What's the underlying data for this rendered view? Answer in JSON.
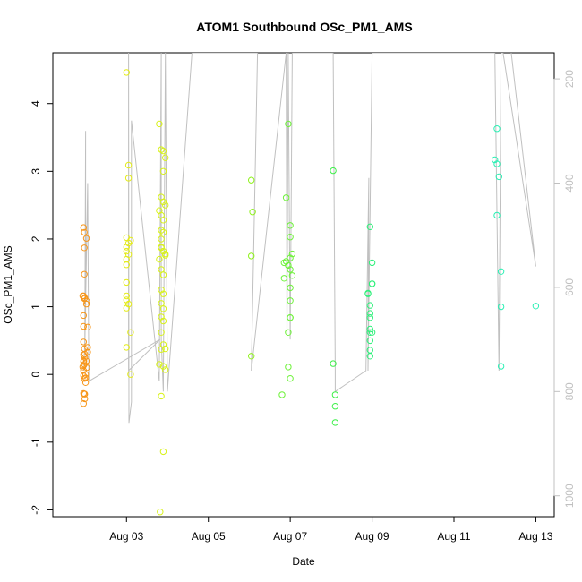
{
  "chart_data": {
    "type": "scatter",
    "title": "ATOM1 Southbound OSc_PM1_AMS",
    "xlabel": "Date",
    "ylabel": "OSc_PM1_AMS",
    "x_ticks": [
      "Aug 03",
      "Aug 05",
      "Aug 07",
      "Aug 09",
      "Aug 11",
      "Aug 13"
    ],
    "x_tick_values": [
      3,
      5,
      7,
      9,
      11,
      13
    ],
    "xlim": [
      1.2,
      13.45
    ],
    "y_ticks": [
      "-2",
      "-1",
      "0",
      "1",
      "2",
      "3",
      "4"
    ],
    "y_tick_values": [
      -2,
      -1,
      0,
      1,
      2,
      3,
      4
    ],
    "ylim": [
      -2.1,
      4.75
    ],
    "right_axis": {
      "ticks": [
        "200",
        "400",
        "600",
        "800",
        "1000"
      ],
      "tick_values": [
        200,
        400,
        600,
        800,
        1000
      ],
      "lim": [
        1040,
        150
      ],
      "line_color": "#c0c0c0",
      "tick_color": "#c0c0c0",
      "line_series": [
        [
          1.96,
          760
        ],
        [
          2.0,
          650
        ],
        [
          2.0,
          300
        ],
        [
          1.98,
          720
        ],
        [
          2.05,
          400
        ],
        [
          2.08,
          780
        ],
        [
          3.82,
          700
        ],
        [
          3.05,
          760
        ],
        [
          3.05,
          150
        ],
        [
          3.06,
          860
        ],
        [
          3.12,
          820
        ],
        [
          3.12,
          280
        ],
        [
          3.8,
          780
        ],
        [
          3.85,
          150
        ],
        [
          3.85,
          700
        ],
        [
          3.9,
          800
        ],
        [
          3.95,
          150
        ],
        [
          4.0,
          800
        ],
        [
          4.6,
          150
        ],
        [
          6.05,
          150
        ],
        [
          6.2,
          150
        ],
        [
          6.05,
          760
        ],
        [
          6.9,
          150
        ],
        [
          6.92,
          700
        ],
        [
          6.95,
          150
        ],
        [
          7.0,
          700
        ],
        [
          7.05,
          150
        ],
        [
          7.15,
          150
        ],
        [
          8.05,
          150
        ],
        [
          8.1,
          760
        ],
        [
          8.1,
          800
        ],
        [
          8.85,
          760
        ],
        [
          8.92,
          390
        ],
        [
          8.9,
          760
        ],
        [
          9.0,
          150
        ],
        [
          12.0,
          150
        ],
        [
          12.1,
          760
        ],
        [
          12.15,
          150
        ],
        [
          12.2,
          150
        ],
        [
          13.0,
          560
        ],
        [
          12.4,
          150
        ]
      ]
    },
    "series": [
      {
        "color": "#f7961a",
        "points": [
          [
            1.95,
            2.17
          ],
          [
            1.95,
            1.16
          ],
          [
            1.93,
            1.16
          ],
          [
            1.98,
            1.13
          ],
          [
            1.95,
            0.87
          ],
          [
            1.95,
            0.71
          ],
          [
            1.95,
            0.48
          ],
          [
            1.97,
            0.38
          ],
          [
            1.98,
            0.3
          ],
          [
            1.95,
            0.29
          ],
          [
            1.98,
            0.25
          ],
          [
            1.95,
            0.19
          ],
          [
            1.97,
            0.15
          ],
          [
            1.95,
            0.13
          ],
          [
            1.93,
            0.11
          ],
          [
            1.95,
            0.06
          ],
          [
            1.95,
            -0.02
          ],
          [
            1.97,
            -0.06
          ],
          [
            2.0,
            -0.12
          ],
          [
            1.97,
            -0.29
          ],
          [
            1.95,
            -0.28
          ],
          [
            1.98,
            -0.29
          ],
          [
            1.95,
            -0.43
          ],
          [
            1.97,
            2.1
          ],
          [
            2.02,
            2.01
          ],
          [
            1.97,
            1.87
          ],
          [
            1.97,
            1.48
          ],
          [
            2.03,
            1.08
          ],
          [
            2.02,
            1.04
          ],
          [
            2.05,
            0.7
          ],
          [
            2.05,
            0.4
          ],
          [
            2.05,
            0.33
          ],
          [
            2.0,
            -0.05
          ],
          [
            2.03,
            0.1
          ],
          [
            1.97,
            1.12
          ],
          [
            1.96,
            0.2
          ],
          [
            2.02,
            0.2
          ],
          [
            1.98,
            -0.36
          ],
          [
            2.0,
            0.0
          ]
        ]
      },
      {
        "color": "#e4ec1a",
        "points": [
          [
            3.0,
            4.46
          ],
          [
            3.05,
            3.09
          ],
          [
            3.05,
            2.9
          ],
          [
            3.0,
            2.02
          ],
          [
            3.05,
            1.94
          ],
          [
            3.0,
            1.88
          ],
          [
            3.0,
            1.82
          ],
          [
            3.05,
            1.77
          ],
          [
            3.0,
            1.7
          ],
          [
            3.0,
            1.62
          ],
          [
            3.0,
            1.36
          ],
          [
            3.0,
            1.16
          ],
          [
            3.0,
            1.1
          ],
          [
            3.05,
            1.04
          ],
          [
            3.0,
            0.98
          ],
          [
            3.1,
            0.62
          ],
          [
            3.0,
            0.4
          ],
          [
            3.1,
            0.0
          ],
          [
            3.1,
            1.98
          ]
        ]
      },
      {
        "color": "#d8f21a",
        "points": [
          [
            3.8,
            3.7
          ],
          [
            3.85,
            3.32
          ],
          [
            3.9,
            3.3
          ],
          [
            3.95,
            3.2
          ],
          [
            3.85,
            2.62
          ],
          [
            3.9,
            2.55
          ],
          [
            3.95,
            2.5
          ],
          [
            3.8,
            2.42
          ],
          [
            3.85,
            2.35
          ],
          [
            3.9,
            2.28
          ],
          [
            3.85,
            2.13
          ],
          [
            3.9,
            2.1
          ],
          [
            3.85,
            1.87
          ],
          [
            3.9,
            1.82
          ],
          [
            3.95,
            1.76
          ],
          [
            3.8,
            1.7
          ],
          [
            3.85,
            1.55
          ],
          [
            3.9,
            1.47
          ],
          [
            3.85,
            1.25
          ],
          [
            3.9,
            1.19
          ],
          [
            3.85,
            1.05
          ],
          [
            3.9,
            0.97
          ],
          [
            3.85,
            0.85
          ],
          [
            3.9,
            0.79
          ],
          [
            3.85,
            0.62
          ],
          [
            3.9,
            0.44
          ],
          [
            3.85,
            0.37
          ],
          [
            3.8,
            0.15
          ],
          [
            3.9,
            0.12
          ],
          [
            3.95,
            0.07
          ],
          [
            3.85,
            -0.32
          ],
          [
            3.9,
            -1.14
          ],
          [
            3.82,
            -2.03
          ],
          [
            3.95,
            1.78
          ],
          [
            3.85,
            1.88
          ],
          [
            3.9,
            3.0
          ],
          [
            3.85,
            2.0
          ],
          [
            3.95,
            0.38
          ]
        ]
      },
      {
        "color": "#8ef21a",
        "points": [
          [
            6.05,
            2.87
          ],
          [
            6.08,
            2.4
          ],
          [
            6.05,
            1.75
          ],
          [
            6.05,
            0.27
          ]
        ]
      },
      {
        "color": "#6ef23a",
        "points": [
          [
            6.95,
            3.7
          ],
          [
            6.9,
            2.61
          ],
          [
            7.0,
            2.2
          ],
          [
            7.0,
            2.03
          ],
          [
            7.05,
            1.78
          ],
          [
            7.0,
            1.72
          ],
          [
            6.9,
            1.67
          ],
          [
            6.95,
            1.61
          ],
          [
            7.0,
            1.55
          ],
          [
            7.05,
            1.46
          ],
          [
            6.85,
            1.42
          ],
          [
            7.0,
            1.28
          ],
          [
            7.0,
            1.09
          ],
          [
            7.0,
            0.84
          ],
          [
            6.95,
            0.62
          ],
          [
            6.95,
            0.11
          ],
          [
            7.0,
            -0.06
          ],
          [
            6.8,
            -0.3
          ],
          [
            7.0,
            0.84
          ],
          [
            6.85,
            1.65
          ]
        ]
      },
      {
        "color": "#3ef04a",
        "points": [
          [
            8.05,
            3.01
          ],
          [
            8.05,
            0.16
          ],
          [
            8.1,
            -0.3
          ],
          [
            8.1,
            -0.47
          ],
          [
            8.1,
            -0.71
          ]
        ]
      },
      {
        "color": "#2ef07a",
        "points": [
          [
            8.95,
            2.18
          ],
          [
            9.0,
            1.65
          ],
          [
            9.0,
            1.34
          ],
          [
            8.9,
            1.19
          ],
          [
            8.95,
            1.02
          ],
          [
            8.95,
            0.84
          ],
          [
            8.95,
            0.67
          ],
          [
            9.0,
            0.62
          ],
          [
            8.95,
            0.5
          ],
          [
            8.95,
            0.36
          ],
          [
            8.95,
            0.27
          ],
          [
            8.9,
            1.2
          ],
          [
            8.95,
            0.9
          ],
          [
            8.95,
            0.62
          ],
          [
            9.0,
            1.34
          ]
        ]
      },
      {
        "color": "#2af0b4",
        "points": [
          [
            12.05,
            3.63
          ],
          [
            12.0,
            3.17
          ],
          [
            12.05,
            3.11
          ],
          [
            12.1,
            2.92
          ],
          [
            12.05,
            2.35
          ],
          [
            12.15,
            1.52
          ],
          [
            12.15,
            1.0
          ],
          [
            12.15,
            0.12
          ],
          [
            13.0,
            1.01
          ]
        ]
      }
    ],
    "grid": false,
    "legend": "none"
  }
}
